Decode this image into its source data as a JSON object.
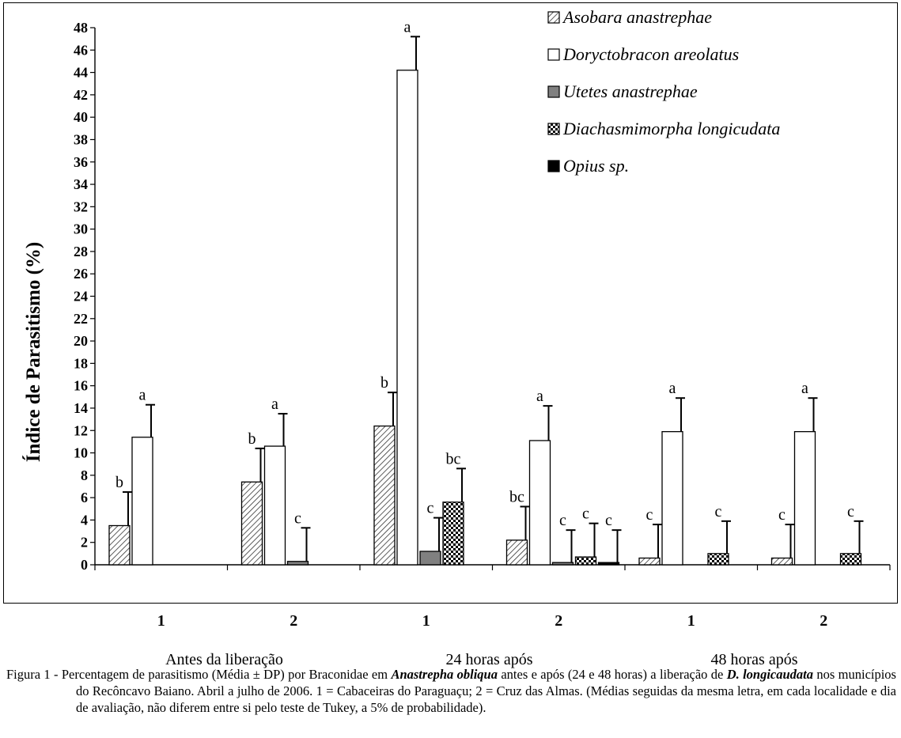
{
  "chart_data": {
    "type": "bar",
    "ylabel": "Índice de Parasitismo (%)",
    "ylim": [
      0,
      48
    ],
    "yticks": [
      "0",
      "2",
      "4",
      "6",
      "8",
      "10",
      "12",
      "14",
      "16",
      "18",
      "20",
      "22",
      "24",
      "26",
      "28",
      "30",
      "32",
      "34",
      "36",
      "38",
      "40",
      "42",
      "44",
      "46",
      "48"
    ],
    "categories": [
      "1",
      "2",
      "1",
      "2",
      "1",
      "2"
    ],
    "group_labels": [
      "Antes da liberação",
      "24 horas após",
      "48 horas após"
    ],
    "legend_position": "top-right",
    "series": [
      {
        "name": "Asobara anastrephae",
        "pattern": "hatch",
        "color": "#ffffff",
        "values": [
          3.5,
          7.4,
          12.4,
          2.2,
          0.6,
          0.6
        ],
        "errors": [
          3.0,
          3.0,
          3.0,
          3.0,
          3.0,
          3.0
        ],
        "letters": [
          "b",
          "b",
          "b",
          "bc",
          "c",
          "c"
        ]
      },
      {
        "name": "Doryctobracon areolatus",
        "pattern": "none",
        "color": "#ffffff",
        "values": [
          11.4,
          10.6,
          44.2,
          11.1,
          11.9,
          11.9
        ],
        "errors": [
          2.9,
          2.9,
          3.0,
          3.1,
          3.0,
          3.0
        ],
        "letters": [
          "a",
          "a",
          "a",
          "a",
          "a",
          "a"
        ]
      },
      {
        "name": "Utetes anastrephae",
        "pattern": "none",
        "color": "#808080",
        "values": [
          null,
          0.3,
          1.2,
          0.2,
          null,
          null
        ],
        "errors": [
          null,
          3.0,
          3.0,
          2.9,
          null,
          null
        ],
        "letters": [
          null,
          "c",
          "c",
          "c",
          null,
          null
        ]
      },
      {
        "name": "Diachasmimorpha longicudata",
        "pattern": "checker",
        "color": "#ffffff",
        "values": [
          null,
          null,
          5.6,
          0.7,
          1.0,
          1.0
        ],
        "errors": [
          null,
          null,
          3.0,
          3.0,
          2.9,
          2.9
        ],
        "letters": [
          null,
          null,
          "bc",
          "c",
          "c",
          "c"
        ]
      },
      {
        "name": "Opius sp.",
        "pattern": "none",
        "color": "#000000",
        "values": [
          null,
          null,
          null,
          0.2,
          null,
          null
        ],
        "errors": [
          null,
          null,
          null,
          2.9,
          null,
          null
        ],
        "letters": [
          null,
          null,
          null,
          "c",
          null,
          null
        ]
      }
    ]
  },
  "caption": {
    "lead": "Figura 1 - ",
    "text_1": "Percentagem de parasitismo (Média ± DP) por Braconidae em ",
    "bold_1": "Anastrepha obliqua",
    "text_2": " antes e após (24 e 48 horas) a liberação de ",
    "bold_2": "D. longicaudata",
    "text_3": " nos municípios do Recôncavo Baiano. Abril a julho de 2006. 1 = Cabaceiras do Paraguaçu; 2 = Cruz das Almas. (Médias seguidas da mesma letra, em cada localidade e dia de avaliação, não diferem entre si pelo teste de Tukey, a 5% de probabilidade)."
  }
}
